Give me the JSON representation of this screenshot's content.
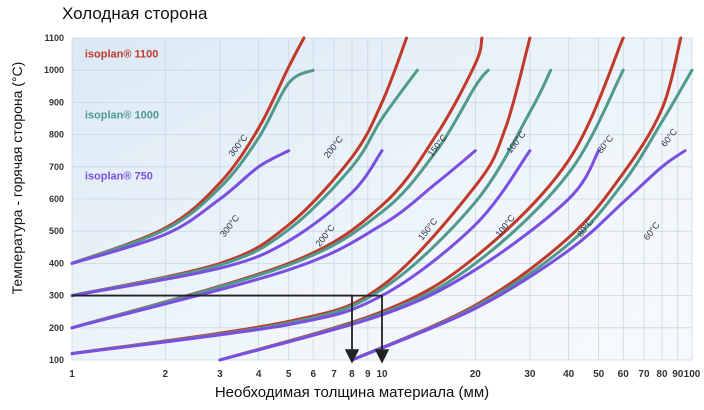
{
  "chart_data": {
    "type": "line",
    "title": "Холодная сторона",
    "xlabel": "Необходимая толщина материала (мм)",
    "ylabel": "Температура - горячая сторона (°C)",
    "x_scale": "log",
    "xlim": [
      1,
      100
    ],
    "ylim": [
      100,
      1100
    ],
    "x_ticks": [
      {
        "value": 1,
        "label": "1"
      },
      {
        "value": 2,
        "label": "2"
      },
      {
        "value": 3,
        "label": "3"
      },
      {
        "value": 4,
        "label": "4"
      },
      {
        "value": 5,
        "label": "5"
      },
      {
        "value": 6,
        "label": "6"
      },
      {
        "value": 7,
        "label": "7"
      },
      {
        "value": 8,
        "label": "8"
      },
      {
        "value": 9,
        "label": "9"
      },
      {
        "value": 10,
        "label": "10"
      },
      {
        "value": 20,
        "label": "20"
      },
      {
        "value": 30,
        "label": "30"
      },
      {
        "value": 40,
        "label": "40"
      },
      {
        "value": 50,
        "label": "50"
      },
      {
        "value": 60,
        "label": "60"
      },
      {
        "value": 70,
        "label": "70"
      },
      {
        "value": 80,
        "label": "80"
      },
      {
        "value": 90,
        "label": "90"
      },
      {
        "value": 100,
        "label": "100"
      }
    ],
    "y_ticks": [
      {
        "value": 100,
        "label": "100"
      },
      {
        "value": 200,
        "label": "200"
      },
      {
        "value": 300,
        "label": "300"
      },
      {
        "value": 400,
        "label": "400"
      },
      {
        "value": 500,
        "label": "500"
      },
      {
        "value": 600,
        "label": "600"
      },
      {
        "value": 700,
        "label": "700"
      },
      {
        "value": 800,
        "label": "800"
      },
      {
        "value": 900,
        "label": "900"
      },
      {
        "value": 1000,
        "label": "1000"
      },
      {
        "value": 1100,
        "label": "1100"
      }
    ],
    "legend_labels": [
      {
        "text": "isoplan® 1100",
        "color": "#c0392b",
        "x": 1.1,
        "y": 1040
      },
      {
        "text": "isoplan® 1000",
        "color": "#4f9a8c",
        "x": 1.1,
        "y": 850
      },
      {
        "text": "isoplan® 750",
        "color": "#7a4fe0",
        "x": 1.1,
        "y": 660
      }
    ],
    "series": [
      {
        "material": "isoplan 1100",
        "cold_side": "300°C",
        "color": "#c0392b",
        "label": "300°C",
        "label_x": 3.3,
        "label_y": 730,
        "points": [
          [
            1,
            400
          ],
          [
            2,
            510
          ],
          [
            3,
            650
          ],
          [
            4,
            820
          ],
          [
            5,
            1010
          ],
          [
            5.6,
            1100
          ]
        ]
      },
      {
        "material": "isoplan 1000",
        "cold_side": "300°C",
        "color": "#4f9a8c",
        "points": [
          [
            1,
            400
          ],
          [
            2,
            505
          ],
          [
            3,
            635
          ],
          [
            4,
            790
          ],
          [
            5,
            960
          ],
          [
            6,
            1000
          ]
        ]
      },
      {
        "material": "isoplan 750",
        "cold_side": "300°C",
        "color": "#7a4fe0",
        "label": "300°C",
        "label_x": 3.1,
        "label_y": 480,
        "points": [
          [
            1,
            400
          ],
          [
            2,
            490
          ],
          [
            3,
            600
          ],
          [
            4,
            700
          ],
          [
            5,
            750
          ]
        ]
      },
      {
        "material": "isoplan 1100",
        "cold_side": "200°C",
        "color": "#c0392b",
        "label": "200°C",
        "label_x": 6.7,
        "label_y": 725,
        "points": [
          [
            1,
            300
          ],
          [
            3,
            400
          ],
          [
            5,
            520
          ],
          [
            8,
            730
          ],
          [
            10,
            900
          ],
          [
            12,
            1100
          ]
        ]
      },
      {
        "material": "isoplan 1000",
        "cold_side": "200°C",
        "color": "#4f9a8c",
        "points": [
          [
            1,
            300
          ],
          [
            3,
            395
          ],
          [
            5,
            505
          ],
          [
            8,
            700
          ],
          [
            10,
            850
          ],
          [
            13,
            1000
          ]
        ]
      },
      {
        "material": "isoplan 750",
        "cold_side": "200°C",
        "color": "#7a4fe0",
        "label": "200°C",
        "label_x": 6.3,
        "label_y": 450,
        "points": [
          [
            1,
            300
          ],
          [
            3,
            385
          ],
          [
            5,
            470
          ],
          [
            8,
            620
          ],
          [
            10,
            750
          ]
        ]
      },
      {
        "material": "isoplan 1100",
        "cold_side": "150°C",
        "color": "#c0392b",
        "label": "150°C",
        "label_x": 14.5,
        "label_y": 730,
        "points": [
          [
            1,
            200
          ],
          [
            5,
            400
          ],
          [
            10,
            580
          ],
          [
            15,
            800
          ],
          [
            20,
            1020
          ],
          [
            21,
            1100
          ]
        ]
      },
      {
        "material": "isoplan 1000",
        "cold_side": "150°C",
        "color": "#4f9a8c",
        "points": [
          [
            1,
            200
          ],
          [
            5,
            395
          ],
          [
            10,
            560
          ],
          [
            15,
            750
          ],
          [
            20,
            950
          ],
          [
            22,
            1000
          ]
        ]
      },
      {
        "material": "isoplan 750",
        "cold_side": "150°C",
        "color": "#7a4fe0",
        "label": "150°C",
        "label_x": 13.5,
        "label_y": 470,
        "points": [
          [
            1,
            200
          ],
          [
            5,
            380
          ],
          [
            10,
            520
          ],
          [
            15,
            650
          ],
          [
            20,
            750
          ]
        ]
      },
      {
        "material": "isoplan 1100",
        "cold_side": "100°C",
        "color": "#c0392b",
        "label": "100°C",
        "label_x": 26,
        "label_y": 740,
        "points": [
          [
            1,
            120
          ],
          [
            5,
            220
          ],
          [
            10,
            330
          ],
          [
            20,
            640
          ],
          [
            25,
            820
          ],
          [
            30,
            1100
          ]
        ]
      },
      {
        "material": "isoplan 1000",
        "cold_side": "100°C",
        "color": "#4f9a8c",
        "points": [
          [
            1,
            120
          ],
          [
            5,
            215
          ],
          [
            10,
            320
          ],
          [
            20,
            590
          ],
          [
            30,
            870
          ],
          [
            35,
            1000
          ]
        ]
      },
      {
        "material": "isoplan 750",
        "cold_side": "100°C",
        "color": "#7a4fe0",
        "label": "100°C",
        "label_x": 24,
        "label_y": 480,
        "points": [
          [
            1,
            120
          ],
          [
            5,
            210
          ],
          [
            10,
            300
          ],
          [
            20,
            520
          ],
          [
            30,
            750
          ]
        ]
      },
      {
        "material": "isoplan 1100",
        "cold_side": "80°C",
        "color": "#c0392b",
        "label": "80°C",
        "label_x": 51,
        "label_y": 740,
        "points": [
          [
            3,
            100
          ],
          [
            10,
            250
          ],
          [
            20,
            420
          ],
          [
            40,
            720
          ],
          [
            60,
            1100
          ]
        ]
      },
      {
        "material": "isoplan 1000",
        "cold_side": "80°C",
        "color": "#4f9a8c",
        "points": [
          [
            3,
            100
          ],
          [
            10,
            245
          ],
          [
            20,
            400
          ],
          [
            40,
            680
          ],
          [
            60,
            1000
          ]
        ]
      },
      {
        "material": "isoplan 750",
        "cold_side": "80°C",
        "color": "#7a4fe0",
        "label": "80°C",
        "label_x": 44,
        "label_y": 480,
        "points": [
          [
            3,
            100
          ],
          [
            10,
            240
          ],
          [
            20,
            380
          ],
          [
            40,
            600
          ],
          [
            50,
            750
          ]
        ]
      },
      {
        "material": "isoplan 1100",
        "cold_side": "60°C",
        "color": "#c0392b",
        "label": "60°C",
        "label_x": 82,
        "label_y": 760,
        "points": [
          [
            8,
            100
          ],
          [
            20,
            270
          ],
          [
            40,
            480
          ],
          [
            60,
            680
          ],
          [
            80,
            880
          ],
          [
            92,
            1100
          ]
        ]
      },
      {
        "material": "isoplan 1000",
        "cold_side": "60°C",
        "color": "#4f9a8c",
        "points": [
          [
            8,
            100
          ],
          [
            20,
            265
          ],
          [
            40,
            460
          ],
          [
            60,
            650
          ],
          [
            80,
            840
          ],
          [
            100,
            1000
          ]
        ]
      },
      {
        "material": "isoplan 750",
        "cold_side": "60°C",
        "color": "#7a4fe0",
        "label": "60°C",
        "label_x": 72,
        "label_y": 470,
        "points": [
          [
            8,
            100
          ],
          [
            20,
            260
          ],
          [
            40,
            440
          ],
          [
            60,
            590
          ],
          [
            80,
            700
          ],
          [
            95,
            750
          ]
        ]
      }
    ],
    "example_lines": [
      {
        "color": "#222222",
        "points": [
          [
            1,
            300
          ],
          [
            8,
            300
          ],
          [
            8,
            100
          ]
        ]
      },
      {
        "color": "#222222",
        "points": [
          [
            1,
            300
          ],
          [
            10,
            300
          ],
          [
            10,
            100
          ]
        ]
      }
    ],
    "grid": true
  }
}
